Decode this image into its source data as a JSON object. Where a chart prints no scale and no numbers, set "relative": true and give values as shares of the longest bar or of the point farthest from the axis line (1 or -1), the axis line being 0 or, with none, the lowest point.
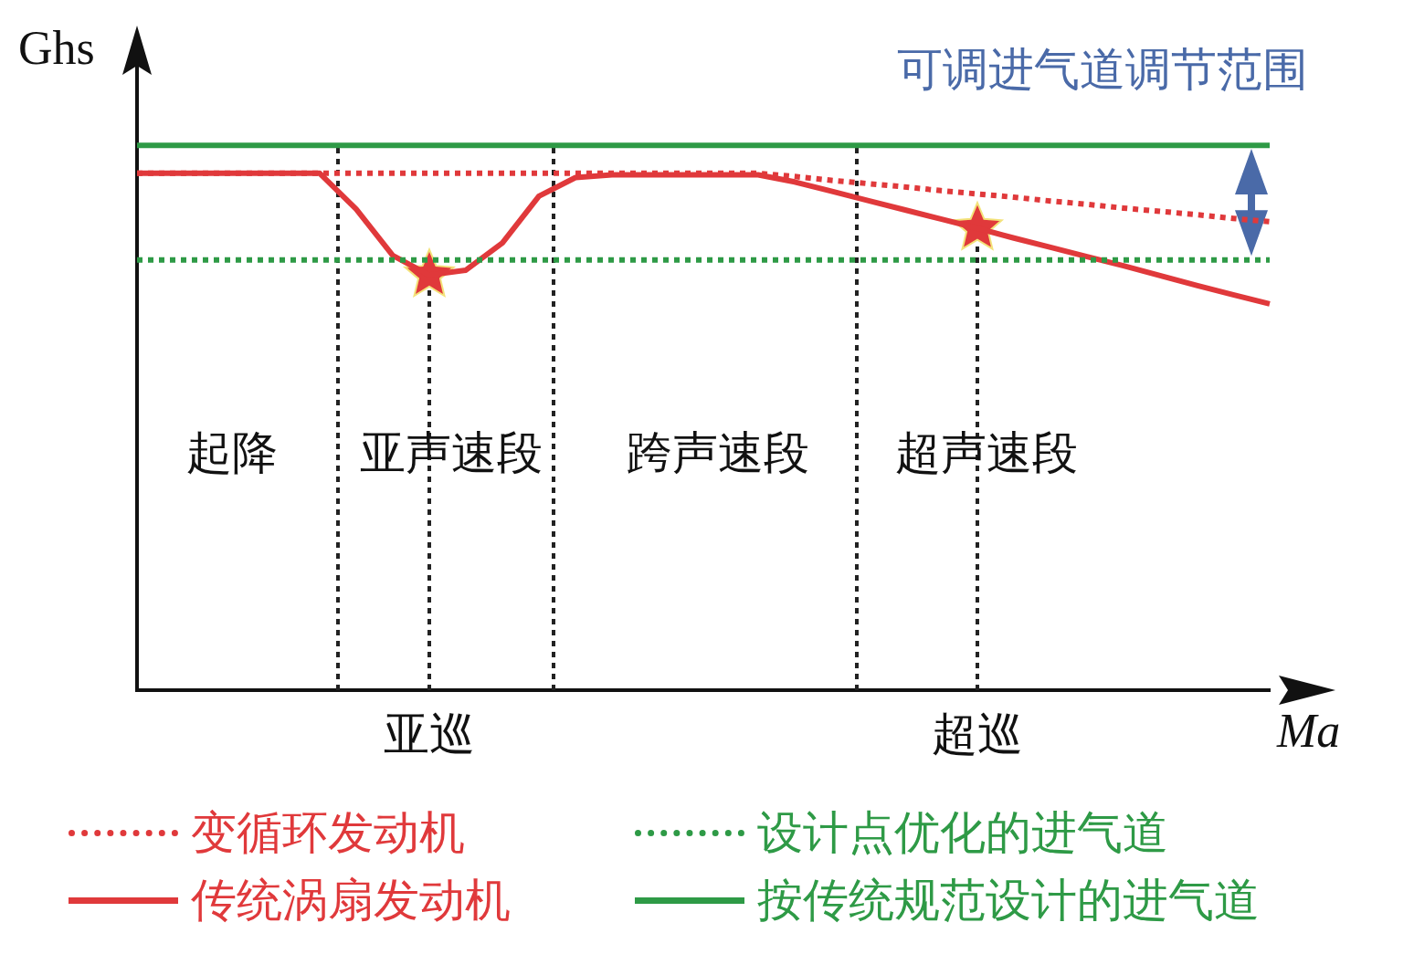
{
  "chart_data": {
    "type": "line",
    "relative": true,
    "xlabel": "Ma",
    "ylabel": "Ghs",
    "legend": "bottom",
    "grid": false,
    "categories": [
      null,
      null,
      null,
      null,
      null,
      null,
      null,
      null,
      "亚巡",
      null,
      null,
      null,
      null,
      null,
      null,
      null,
      null,
      null,
      null,
      null,
      null,
      null,
      null,
      "超巡",
      null,
      null,
      null,
      null,
      null,
      null,
      null,
      null
    ],
    "series": [
      {
        "name": "变循环发动机",
        "color": "#e0393b",
        "line_style": "dotted",
        "values": [
          0.949,
          0.949,
          0.949,
          0.949,
          0.949,
          0.949,
          0.949,
          0.949,
          0.949,
          0.949,
          0.949,
          0.949,
          0.949,
          0.949,
          0.949,
          0.949,
          0.949,
          0.949,
          0.943,
          0.936,
          0.93,
          0.924,
          0.917,
          0.911,
          0.905,
          0.898,
          0.892,
          0.885,
          0.879,
          0.873,
          0.866,
          0.86
        ]
      },
      {
        "name": "设计点优化的进气道",
        "color": "#2e9a46",
        "line_style": "dotted",
        "values": [
          0.79,
          0.79,
          0.79,
          0.79,
          0.79,
          0.79,
          0.79,
          0.79,
          0.79,
          0.79,
          0.79,
          0.79,
          0.79,
          0.79,
          0.79,
          0.79,
          0.79,
          0.79,
          0.79,
          0.79,
          0.79,
          0.79,
          0.79,
          0.79,
          0.79,
          0.79,
          0.79,
          0.79,
          0.79,
          0.79,
          0.79,
          0.79
        ]
      },
      {
        "name": "传统涡扇发动机",
        "color": "#e0393b",
        "line_style": "solid",
        "values": [
          0.949,
          0.949,
          0.949,
          0.949,
          0.949,
          0.949,
          0.883,
          0.798,
          0.762,
          0.771,
          0.821,
          0.907,
          0.941,
          0.946,
          0.946,
          0.946,
          0.946,
          0.946,
          0.933,
          0.916,
          0.899,
          0.882,
          0.865,
          0.848,
          0.83,
          0.813,
          0.796,
          0.779,
          0.761,
          0.743,
          0.726,
          0.709
        ]
      },
      {
        "name": "按传统规范设计的进气道",
        "color": "#2e9a46",
        "line_style": "solid",
        "values": [
          1,
          1,
          1,
          1,
          1,
          1,
          1,
          1,
          1,
          1,
          1,
          1,
          1,
          1,
          1,
          1,
          1,
          1,
          1,
          1,
          1,
          1,
          1,
          1,
          1,
          1,
          1,
          1,
          1,
          1,
          1,
          1
        ]
      },
      {
        "type": "scatter",
        "marker": "star",
        "color": "#e0393b",
        "x": [
          "亚巡",
          "超巡"
        ],
        "values": [
          0.762,
          0.848
        ]
      }
    ],
    "ref_lines": [
      {
        "axis": "x",
        "value": "亚巡"
      },
      {
        "axis": "x",
        "value": "超巡"
      }
    ],
    "annotations": [
      "可调进气道调节范围",
      "起降",
      "亚声速段",
      "跨声速段",
      "超声速段"
    ]
  }
}
